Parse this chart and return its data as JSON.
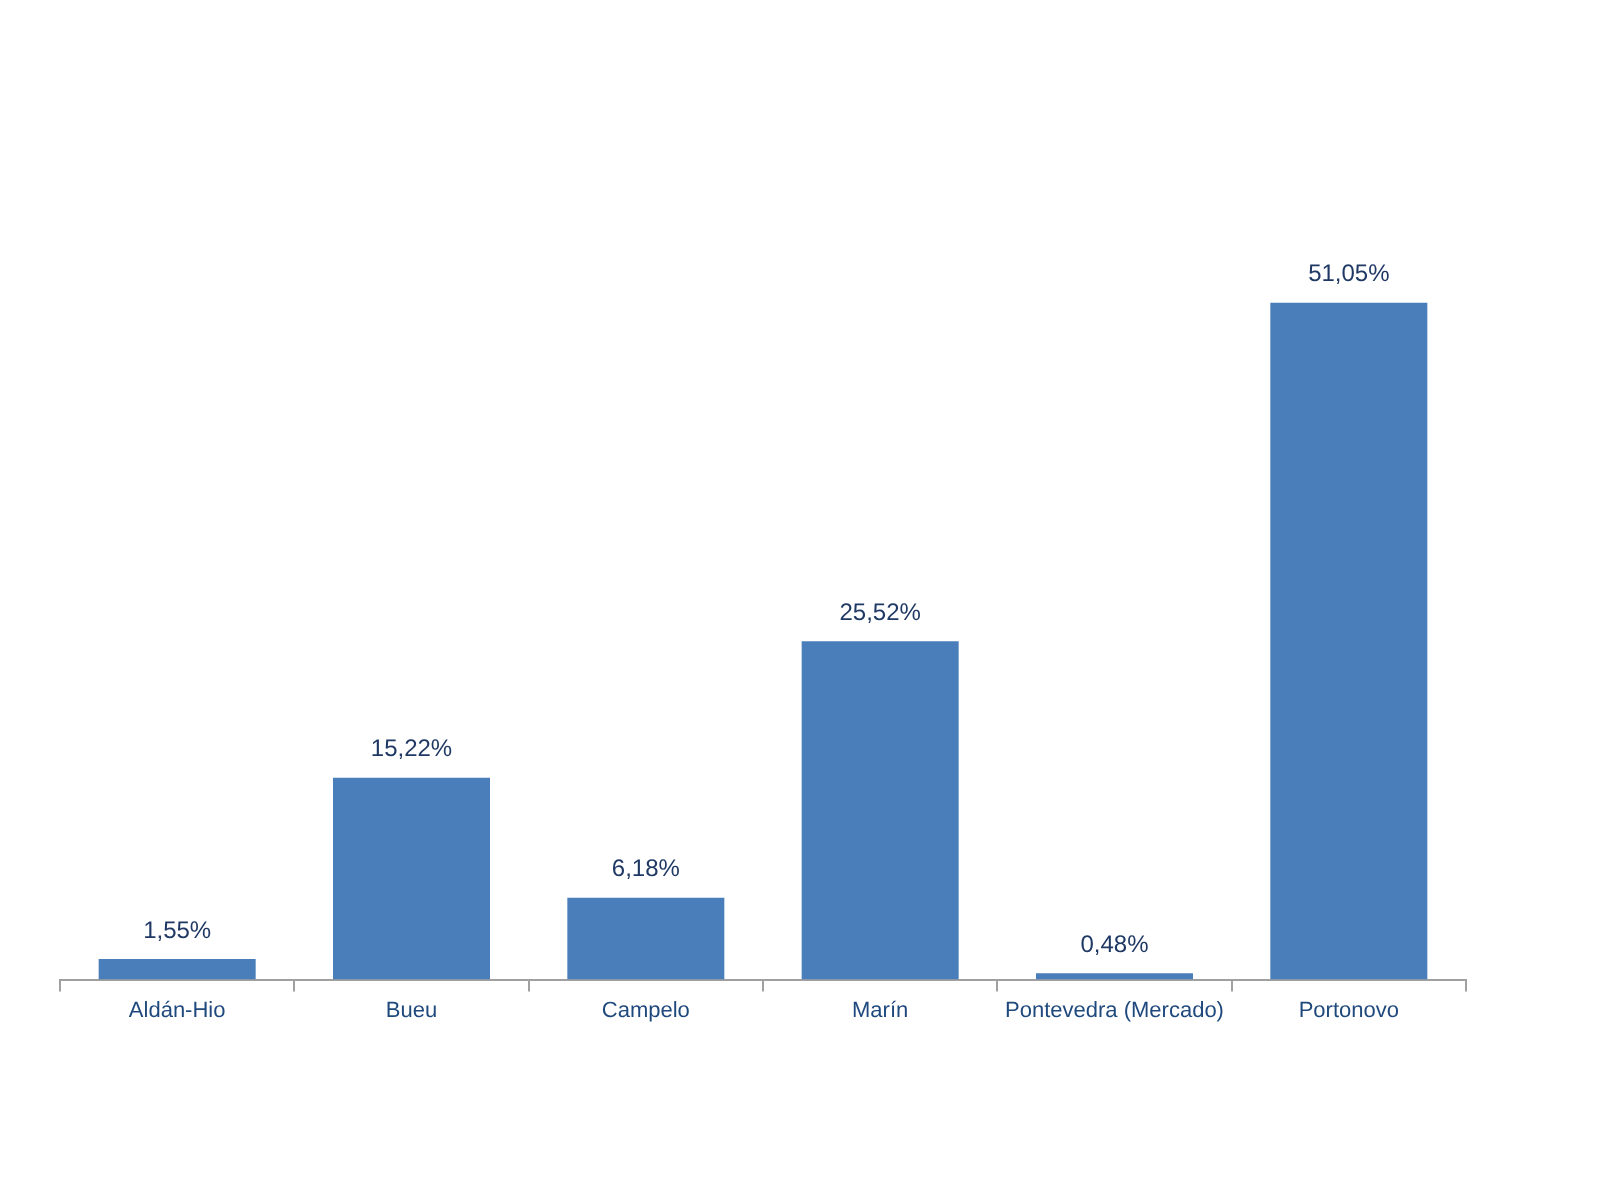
{
  "chart_data": {
    "type": "bar",
    "categories": [
      "Aldán-Hio",
      "Bueu",
      "Campelo",
      "Marín",
      "Pontevedra (Mercado)",
      "Portonovo"
    ],
    "values": [
      1.55,
      15.22,
      6.18,
      25.52,
      0.48,
      51.05
    ],
    "color": "#4a7ebb",
    "value_labels": [
      "1,55%",
      "15,22%",
      "6,18%",
      "25,52%",
      "0,48%",
      "51,05%"
    ],
    "legend": false
  }
}
